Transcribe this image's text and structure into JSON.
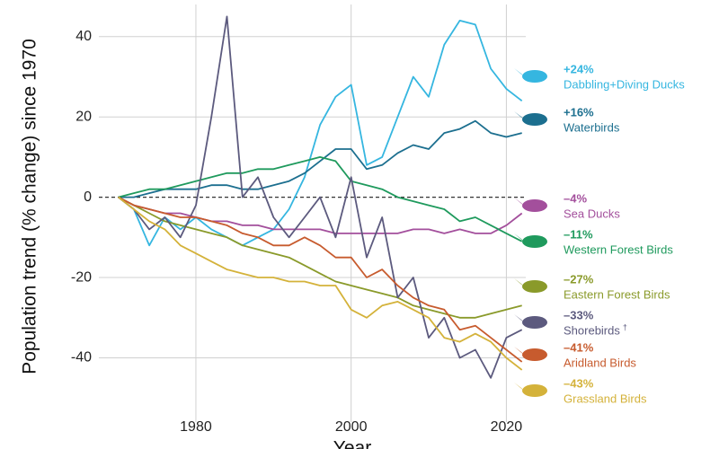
{
  "chart_data": {
    "type": "line",
    "y_label": "Population trend (% change) since 1970",
    "x_label": "Year",
    "x": [
      1970,
      1972,
      1974,
      1976,
      1978,
      1980,
      1982,
      1984,
      1986,
      1988,
      1990,
      1992,
      1994,
      1996,
      1998,
      2000,
      2002,
      2004,
      2006,
      2008,
      2010,
      2012,
      2014,
      2016,
      2018,
      2020,
      2022
    ],
    "xlim": [
      1967.5,
      2022.5
    ],
    "ylim": [
      -56,
      48
    ],
    "xticks": [
      1980,
      2000,
      2020
    ],
    "yticks": [
      -40,
      -20,
      0,
      20,
      40
    ],
    "grid": true,
    "zero_line": true,
    "series": [
      {
        "name": "Dabbling+Diving Ducks",
        "color": "#35b6e0",
        "change": 24,
        "change_label": "+24%",
        "values": [
          0,
          -3,
          -12,
          -5,
          -8,
          -5,
          -8,
          -10,
          -12,
          -10,
          -8,
          -3,
          5,
          18,
          25,
          28,
          8,
          10,
          20,
          30,
          25,
          38,
          44,
          43,
          32,
          27,
          24
        ]
      },
      {
        "name": "Waterbirds",
        "color": "#1c6f8f",
        "change": 16,
        "change_label": "+16%",
        "values": [
          0,
          0,
          1,
          2,
          2,
          2,
          3,
          3,
          2,
          2,
          3,
          4,
          6,
          9,
          12,
          12,
          7,
          8,
          11,
          13,
          12,
          16,
          17,
          19,
          16,
          15,
          16
        ]
      },
      {
        "name": "Sea Ducks",
        "color": "#a34f9c",
        "change": -4,
        "change_label": "–4%",
        "values": [
          0,
          -2,
          -3,
          -4,
          -4,
          -5,
          -6,
          -6,
          -7,
          -7,
          -8,
          -8,
          -8,
          -8,
          -9,
          -9,
          -9,
          -9,
          -9,
          -8,
          -8,
          -9,
          -8,
          -9,
          -9,
          -7,
          -4
        ]
      },
      {
        "name": "Western Forest Birds",
        "color": "#1f9a5d",
        "change": -11,
        "change_label": "–11%",
        "values": [
          0,
          1,
          2,
          2,
          3,
          4,
          5,
          6,
          6,
          7,
          7,
          8,
          9,
          10,
          9,
          4,
          3,
          2,
          0,
          -1,
          -2,
          -3,
          -6,
          -5,
          -7,
          -9,
          -11
        ]
      },
      {
        "name": "Eastern Forest Birds",
        "color": "#8a9a2a",
        "change": -27,
        "change_label": "–27%",
        "values": [
          0,
          -2,
          -4,
          -6,
          -7,
          -8,
          -9,
          -10,
          -12,
          -13,
          -14,
          -15,
          -17,
          -19,
          -21,
          -22,
          -23,
          -24,
          -25,
          -27,
          -28,
          -29,
          -30,
          -30,
          -29,
          -28,
          -27
        ]
      },
      {
        "name": "Shorebirds",
        "footnote": "†",
        "color": "#5c5a7e",
        "change": -33,
        "change_label": "–33%",
        "values": [
          0,
          -3,
          -8,
          -5,
          -10,
          -2,
          20,
          45,
          0,
          5,
          -5,
          -10,
          -5,
          0,
          -10,
          5,
          -15,
          -5,
          -25,
          -20,
          -35,
          -30,
          -40,
          -38,
          -45,
          -35,
          -33
        ]
      },
      {
        "name": "Aridland Birds",
        "color": "#c75b2e",
        "change": -41,
        "change_label": "–41%",
        "values": [
          0,
          -2,
          -3,
          -4,
          -5,
          -5,
          -6,
          -7,
          -9,
          -10,
          -12,
          -12,
          -10,
          -12,
          -15,
          -15,
          -20,
          -18,
          -22,
          -25,
          -27,
          -28,
          -33,
          -32,
          -35,
          -38,
          -41
        ]
      },
      {
        "name": "Grassland Birds",
        "color": "#d4b23a",
        "change": -43,
        "change_label": "–43%",
        "values": [
          0,
          -3,
          -6,
          -8,
          -12,
          -14,
          -16,
          -18,
          -19,
          -20,
          -20,
          -21,
          -21,
          -22,
          -22,
          -28,
          -30,
          -27,
          -26,
          -28,
          -30,
          -35,
          -36,
          -34,
          -36,
          -40,
          -43
        ]
      }
    ]
  }
}
